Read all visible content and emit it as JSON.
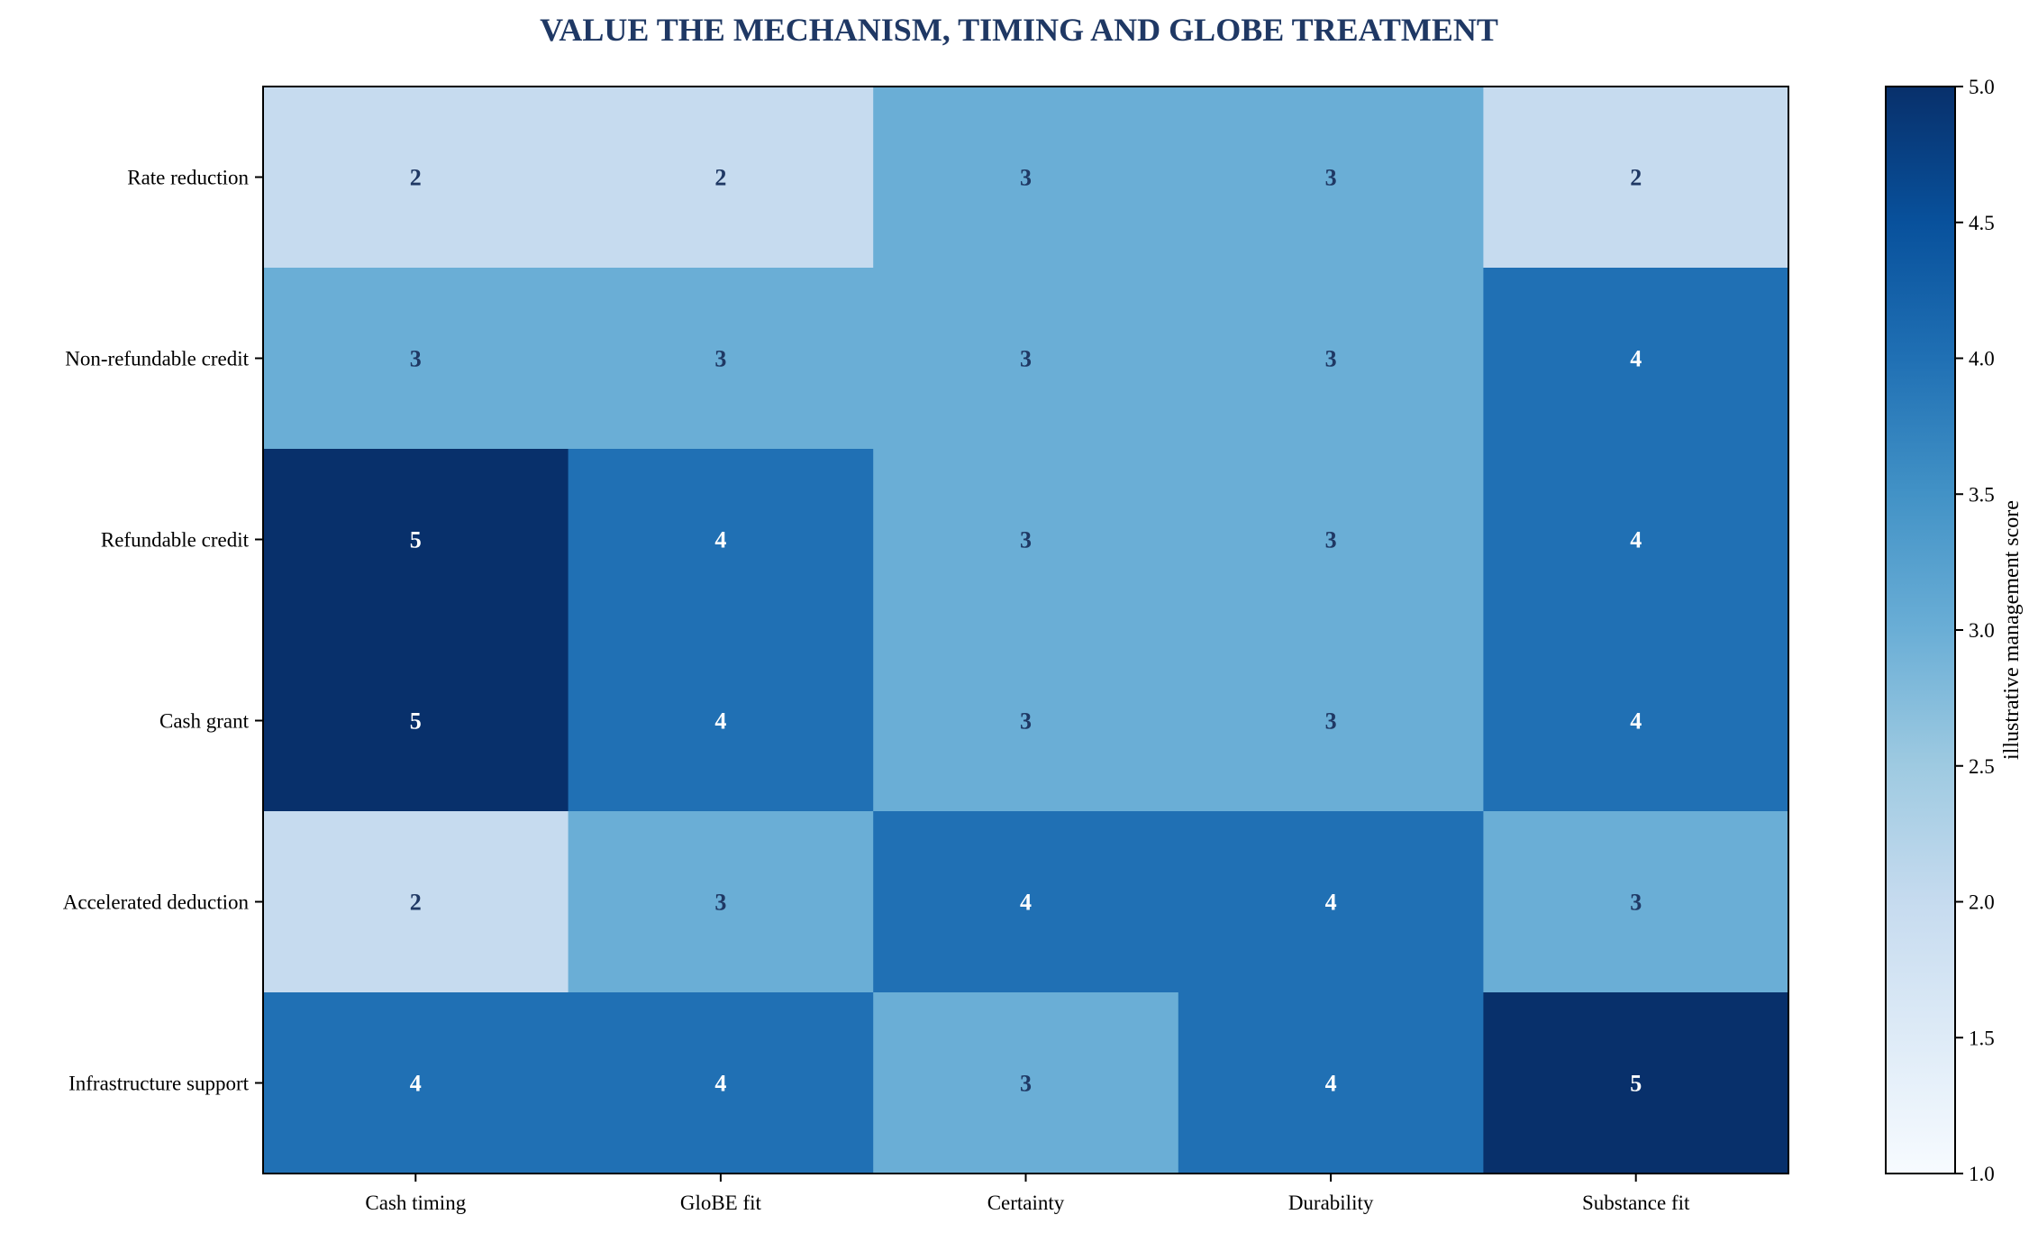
{
  "chart_data": {
    "type": "heatmap",
    "title": "VALUE THE MECHANISM, TIMING AND GLOBE TREATMENT",
    "rows": [
      "Rate reduction",
      "Non-refundable credit",
      "Refundable credit",
      "Cash grant",
      "Accelerated deduction",
      "Infrastructure support"
    ],
    "columns": [
      "Cash timing",
      "GloBE fit",
      "Certainty",
      "Durability",
      "Substance fit"
    ],
    "values": [
      [
        2,
        2,
        3,
        3,
        2
      ],
      [
        3,
        3,
        3,
        3,
        4
      ],
      [
        5,
        4,
        3,
        3,
        4
      ],
      [
        5,
        4,
        3,
        3,
        4
      ],
      [
        2,
        3,
        4,
        4,
        3
      ],
      [
        4,
        4,
        3,
        4,
        5
      ]
    ],
    "colorbar": {
      "label": "illustrative management score",
      "range": [
        1.0,
        5.0
      ],
      "ticks": [
        "1.0",
        "1.5",
        "2.0",
        "2.5",
        "3.0",
        "3.5",
        "4.0",
        "4.5",
        "5.0"
      ]
    },
    "colormap": "Blues",
    "cell_colors": {
      "2": "#c6dbef",
      "3": "#6aaed6",
      "4": "#2070b4",
      "5": "#08306b"
    },
    "title_color": "#1f3864",
    "dark_text_color": "#1f3864",
    "light_text_color": "#ffffff"
  }
}
